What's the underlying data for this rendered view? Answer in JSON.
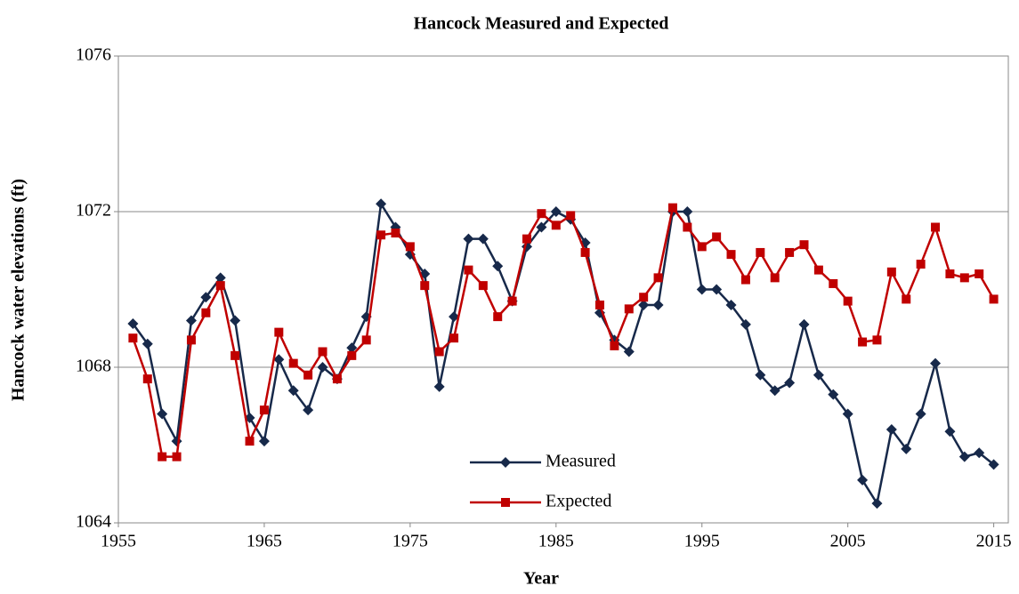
{
  "chart_data": {
    "type": "line",
    "title": "Hancock Measured and Expected",
    "x_label": "Year",
    "y_label": "Hancock water elevations (ft)",
    "x": [
      1956,
      1957,
      1958,
      1959,
      1960,
      1961,
      1962,
      1963,
      1964,
      1965,
      1966,
      1967,
      1968,
      1969,
      1970,
      1971,
      1972,
      1973,
      1974,
      1975,
      1976,
      1977,
      1978,
      1979,
      1980,
      1981,
      1982,
      1983,
      1984,
      1985,
      1986,
      1987,
      1988,
      1989,
      1990,
      1991,
      1992,
      1993,
      1994,
      1995,
      1996,
      1997,
      1998,
      1999,
      2000,
      2001,
      2002,
      2003,
      2004,
      2005,
      2006,
      2007,
      2008,
      2009,
      2010,
      2011,
      2012,
      2013,
      2014,
      2015
    ],
    "series": [
      {
        "name": "Measured",
        "color": "#17294a",
        "marker": "diamond",
        "values": [
          1069.12,
          1068.6,
          1066.8,
          1066.1,
          1069.2,
          1069.8,
          1070.3,
          1069.2,
          1066.7,
          1066.1,
          1068.2,
          1067.4,
          1066.9,
          1068.0,
          1067.7,
          1068.5,
          1069.3,
          1072.2,
          1071.6,
          1070.9,
          1070.4,
          1067.5,
          1069.3,
          1071.3,
          1071.3,
          1070.6,
          1069.7,
          1071.1,
          1071.6,
          1072.0,
          1071.8,
          1071.2,
          1069.4,
          1068.7,
          1068.4,
          1069.6,
          1069.6,
          1072.0,
          1072.0,
          1070.0,
          1070.0,
          1069.6,
          1069.1,
          1067.8,
          1067.4,
          1067.6,
          1069.1,
          1067.8,
          1067.3,
          1066.8,
          1065.1,
          1064.5,
          1066.4,
          1065.9,
          1066.8,
          1068.1,
          1066.35,
          1065.7,
          1065.8,
          1065.5
        ]
      },
      {
        "name": "Expected",
        "color": "#c00000",
        "marker": "square",
        "values": [
          1068.75,
          1067.7,
          1065.7,
          1065.7,
          1068.7,
          1069.4,
          1070.1,
          1068.3,
          1066.1,
          1066.9,
          1068.9,
          1068.1,
          1067.8,
          1068.4,
          1067.7,
          1068.3,
          1068.7,
          1071.4,
          1071.45,
          1071.1,
          1070.1,
          1068.4,
          1068.75,
          1070.5,
          1070.1,
          1069.3,
          1069.7,
          1071.3,
          1071.95,
          1071.65,
          1071.9,
          1070.95,
          1069.6,
          1068.55,
          1069.5,
          1069.8,
          1070.3,
          1072.1,
          1071.6,
          1071.1,
          1071.35,
          1070.9,
          1070.25,
          1070.95,
          1070.3,
          1070.95,
          1071.15,
          1070.5,
          1070.15,
          1069.7,
          1068.65,
          1068.7,
          1070.45,
          1069.75,
          1070.65,
          1071.6,
          1070.4,
          1070.3,
          1070.4,
          1069.75
        ]
      }
    ],
    "xlim": [
      1955,
      2016
    ],
    "xticks": [
      1955,
      1965,
      1975,
      1985,
      1995,
      2005,
      2015
    ],
    "ylim": [
      1064,
      1076
    ],
    "yticks": [
      1064,
      1068,
      1072,
      1076
    ],
    "grid": true,
    "legend": "lower center"
  }
}
